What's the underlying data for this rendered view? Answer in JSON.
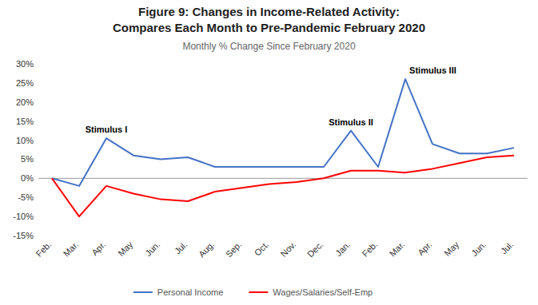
{
  "chart_data": {
    "type": "line",
    "title": [
      "Figure 9: Changes in Income-Related Activity:",
      "Compares Each Month to Pre-Pandemic February 2020"
    ],
    "subtitle": "Monthly % Change Since February 2020",
    "categories": [
      "Feb.",
      "Mar.",
      "Apr.",
      "May",
      "Jun.",
      "Jul.",
      "Aug.",
      "Sep.",
      "Oct.",
      "Nov.",
      "Dec.",
      "Jan.",
      "Feb.",
      "Mar.",
      "Apr.",
      "May",
      "Jun.",
      "Jul."
    ],
    "series": [
      {
        "name": "Personal Income",
        "color": "#4472C4",
        "values": [
          0,
          -2,
          10.5,
          6,
          5,
          5.5,
          3,
          3,
          3,
          3,
          3,
          12.5,
          3,
          26,
          9,
          6.5,
          6.5,
          8
        ]
      },
      {
        "name": "Wages/Salaries/Self-Emp",
        "color": "#FF0000",
        "values": [
          0,
          -10,
          -2,
          -4,
          -5.5,
          -6,
          -3.5,
          -2.5,
          -1.5,
          -1,
          0,
          2,
          2,
          1.5,
          2.5,
          4,
          5.5,
          6
        ]
      }
    ],
    "ylim": [
      -15,
      30
    ],
    "yticks": [
      {
        "value": -15,
        "label": "-15%"
      },
      {
        "value": -10,
        "label": "-10%"
      },
      {
        "value": -5,
        "label": "-5%"
      },
      {
        "value": 0,
        "label": "0%"
      },
      {
        "value": 5,
        "label": "5%"
      },
      {
        "value": 10,
        "label": "10%"
      },
      {
        "value": 15,
        "label": "15%"
      },
      {
        "value": 20,
        "label": "20%"
      },
      {
        "value": 25,
        "label": "25%"
      },
      {
        "value": 30,
        "label": "30%"
      }
    ],
    "annotations": [
      {
        "text": "Stimulus I",
        "x": 2,
        "y": 10.5
      },
      {
        "text": "Stimulus II",
        "x": 11,
        "y": 12.5
      },
      {
        "text": "Stimulus III",
        "x": 13,
        "y": 26
      }
    ],
    "grid": false,
    "legend": "bottom"
  }
}
